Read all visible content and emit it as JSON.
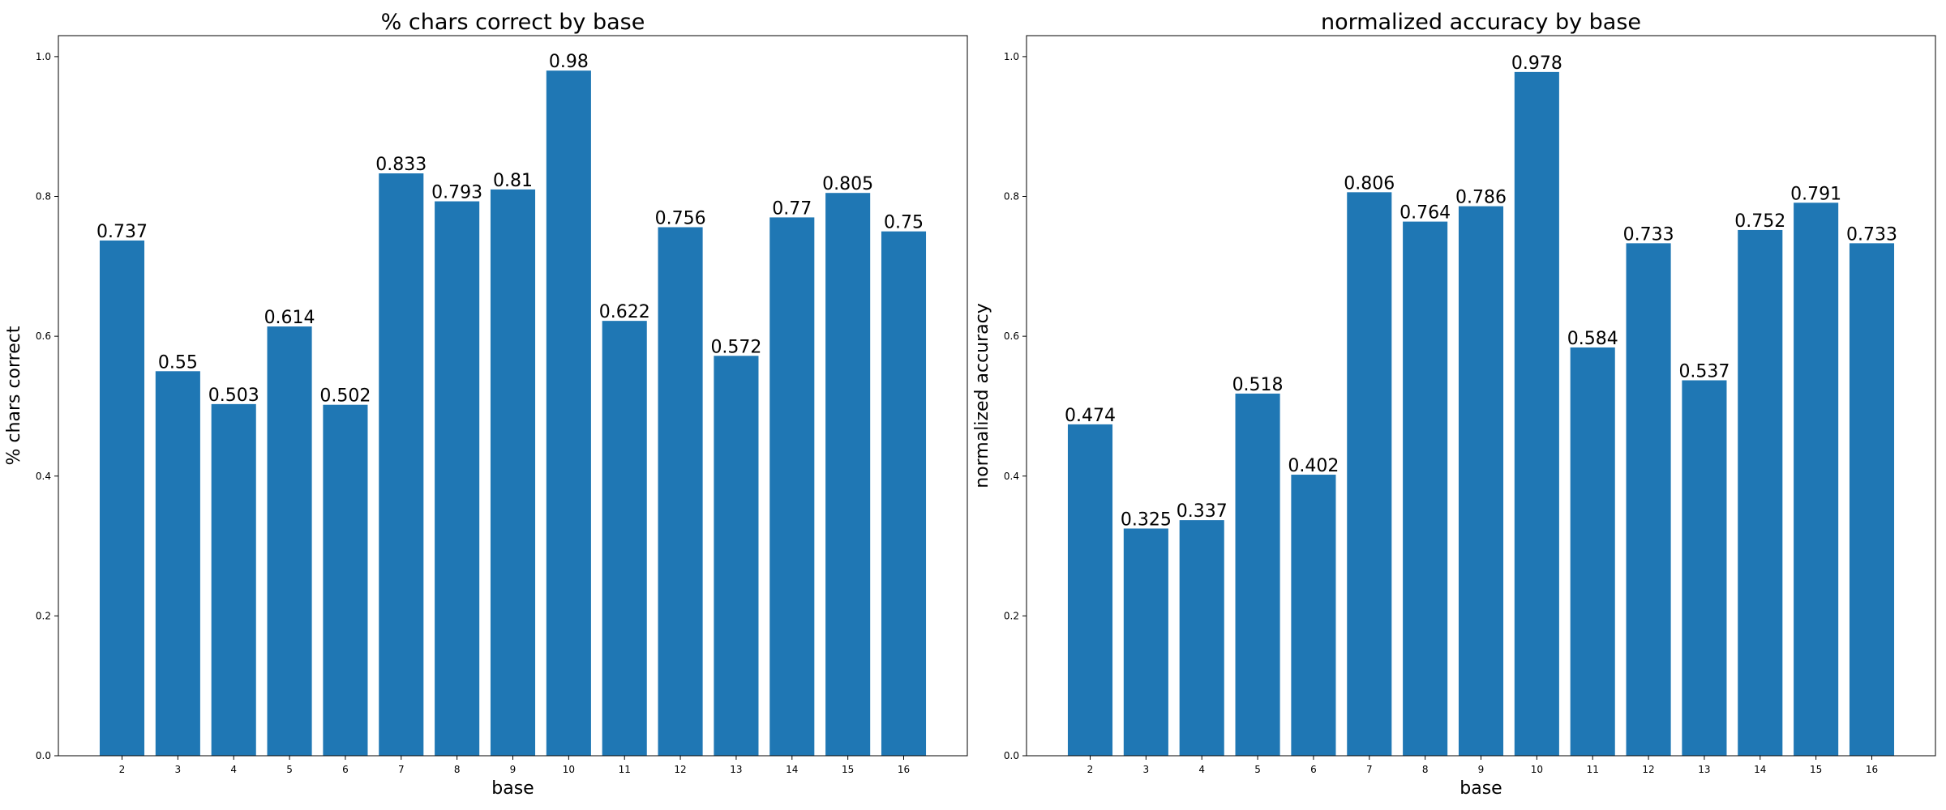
{
  "chart_data": [
    {
      "type": "bar",
      "title": "% chars correct by base",
      "xlabel": "base",
      "ylabel": "% chars correct",
      "categories": [
        "2",
        "3",
        "4",
        "5",
        "6",
        "7",
        "8",
        "9",
        "10",
        "11",
        "12",
        "13",
        "14",
        "15",
        "16"
      ],
      "values": [
        0.737,
        0.55,
        0.503,
        0.614,
        0.502,
        0.833,
        0.793,
        0.81,
        0.98,
        0.622,
        0.756,
        0.572,
        0.77,
        0.805,
        0.75
      ],
      "data_labels": [
        "0.737",
        "0.55",
        "0.503",
        "0.614",
        "0.502",
        "0.833",
        "0.793",
        "0.81",
        "0.98",
        "0.622",
        "0.756",
        "0.572",
        "0.77",
        "0.805",
        "0.75"
      ],
      "ylim": [
        0,
        1.03
      ],
      "yticks": [
        "0.0",
        "0.2",
        "0.4",
        "0.6",
        "0.8",
        "1.0"
      ],
      "color": "#1f77b4",
      "grid": false
    },
    {
      "type": "bar",
      "title": "normalized accuracy by base",
      "xlabel": "base",
      "ylabel": "normalized accuracy",
      "categories": [
        "2",
        "3",
        "4",
        "5",
        "6",
        "7",
        "8",
        "9",
        "10",
        "11",
        "12",
        "13",
        "14",
        "15",
        "16"
      ],
      "values": [
        0.474,
        0.325,
        0.337,
        0.518,
        0.402,
        0.806,
        0.764,
        0.786,
        0.978,
        0.584,
        0.733,
        0.537,
        0.752,
        0.791,
        0.733
      ],
      "data_labels": [
        "0.474",
        "0.325",
        "0.337",
        "0.518",
        "0.402",
        "0.806",
        "0.764",
        "0.786",
        "0.978",
        "0.584",
        "0.733",
        "0.537",
        "0.752",
        "0.791",
        "0.733"
      ],
      "ylim": [
        0,
        1.03
      ],
      "yticks": [
        "0.0",
        "0.2",
        "0.4",
        "0.6",
        "0.8",
        "1.0"
      ],
      "color": "#1f77b4",
      "grid": false
    }
  ]
}
